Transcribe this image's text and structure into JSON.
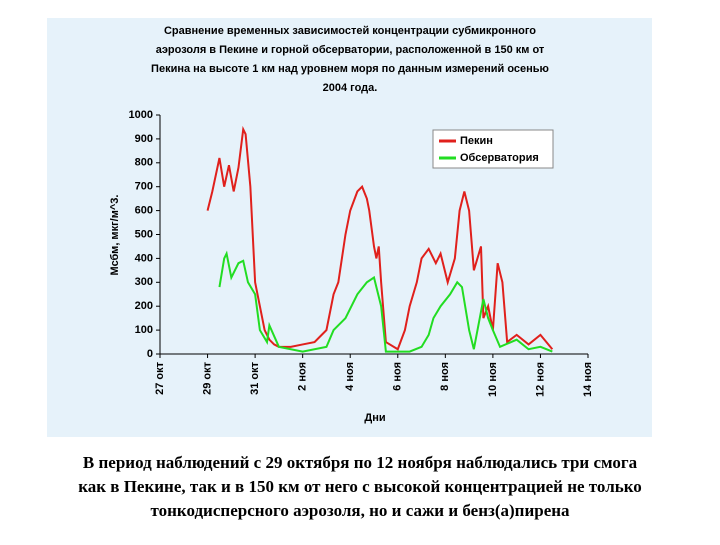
{
  "chart_data": {
    "type": "line",
    "title": [
      "Сравнение временных зависимостей концентрации субмикронного",
      "аэрозоля в Пекине и горной обсерватории, расположенной в 150 км от",
      "Пекина на высоте 1 км над уровнем моря по данным измерений осенью",
      "2004 года."
    ],
    "ylabel": "Мсбм, мкг/м^3.",
    "xlabel": "Дни",
    "xlim": [
      0,
      18
    ],
    "xticks": [
      {
        "value": 0,
        "label": "27 окт"
      },
      {
        "value": 2,
        "label": "29 окт"
      },
      {
        "value": 4,
        "label": "31 окт"
      },
      {
        "value": 6,
        "label": "2 ноя"
      },
      {
        "value": 8,
        "label": "4 ноя"
      },
      {
        "value": 10,
        "label": "6 ноя"
      },
      {
        "value": 12,
        "label": "8 ноя"
      },
      {
        "value": 14,
        "label": "10 ноя"
      },
      {
        "value": 16,
        "label": "12 ноя"
      },
      {
        "value": 18,
        "label": "14 ноя"
      }
    ],
    "ylim": [
      0,
      1000
    ],
    "yticks": [
      0,
      100,
      200,
      300,
      400,
      500,
      600,
      700,
      800,
      900,
      1000
    ],
    "legend": "upper right",
    "series": [
      {
        "name": "Пекин",
        "color": "#e0201c",
        "x": [
          2,
          2.2,
          2.5,
          2.7,
          2.9,
          3.1,
          3.3,
          3.5,
          3.6,
          3.8,
          4.0,
          4.2,
          4.4,
          4.6,
          4.8,
          5.0,
          5.5,
          6.0,
          6.5,
          6.8,
          7.0,
          7.3,
          7.5,
          7.8,
          8.0,
          8.3,
          8.5,
          8.7,
          8.8,
          9.0,
          9.1,
          9.2,
          9.3,
          9.5,
          10.0,
          10.3,
          10.5,
          10.8,
          11.0,
          11.3,
          11.6,
          11.8,
          12.1,
          12.4,
          12.6,
          12.8,
          13.0,
          13.2,
          13.5,
          13.6,
          13.8,
          14.0,
          14.2,
          14.4,
          14.6,
          15.0,
          15.5,
          16.0,
          16.5
        ],
        "values": [
          600,
          680,
          820,
          700,
          790,
          680,
          780,
          940,
          920,
          700,
          300,
          200,
          100,
          60,
          40,
          30,
          30,
          40,
          50,
          80,
          100,
          250,
          300,
          500,
          600,
          680,
          700,
          650,
          600,
          450,
          400,
          450,
          300,
          50,
          20,
          100,
          200,
          300,
          400,
          440,
          380,
          420,
          300,
          400,
          600,
          680,
          600,
          350,
          450,
          150,
          200,
          100,
          380,
          300,
          50,
          80,
          40,
          80,
          20
        ]
      },
      {
        "name": "Обсерватория",
        "color": "#22dd22",
        "x": [
          2.5,
          2.7,
          2.8,
          3.0,
          3.3,
          3.5,
          3.7,
          4.0,
          4.2,
          4.5,
          4.6,
          5.0,
          6.0,
          7.0,
          7.3,
          7.8,
          8.3,
          8.7,
          9.0,
          9.3,
          9.5,
          10.5,
          11.0,
          11.3,
          11.5,
          11.8,
          12.2,
          12.5,
          12.7,
          13.0,
          13.2,
          13.6,
          13.8,
          14.0,
          14.3,
          15.0,
          15.5,
          16.0,
          16.5
        ],
        "values": [
          280,
          400,
          420,
          320,
          380,
          390,
          300,
          250,
          100,
          50,
          120,
          30,
          10,
          30,
          100,
          150,
          250,
          300,
          320,
          200,
          10,
          10,
          30,
          80,
          150,
          200,
          250,
          300,
          280,
          100,
          20,
          230,
          150,
          100,
          30,
          60,
          20,
          30,
          10
        ]
      }
    ]
  },
  "caption": [
    "В период наблюдений с 29 октября по 12 ноября наблюдались три смога",
    "как в Пекине, так и в 150 км от него с высокой концентрацией не только",
    "тонкодисперсного аэрозоля, но и сажи и бенз(а)пирена"
  ]
}
